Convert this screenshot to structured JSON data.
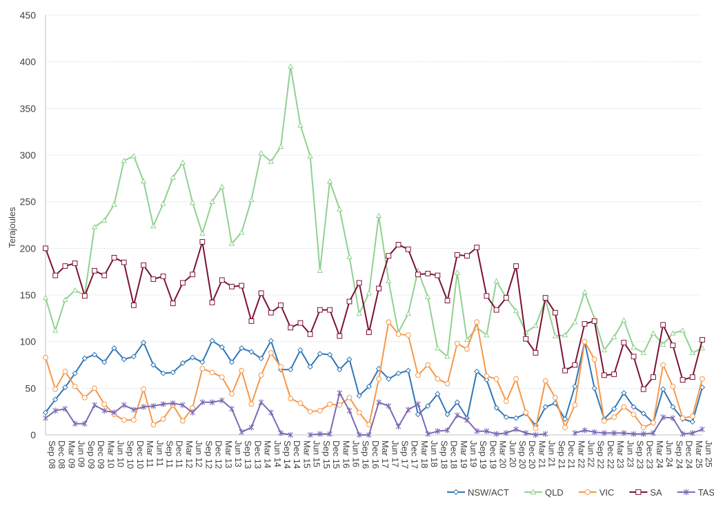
{
  "chart_data": {
    "type": "line",
    "ylabel": "Terajoules",
    "xlabel": "",
    "title": "",
    "ylim": [
      0,
      450
    ],
    "yticks": [
      0,
      50,
      100,
      150,
      200,
      250,
      300,
      350,
      400,
      450
    ],
    "grid": true,
    "legend_position": "bottom-right",
    "categories": [
      "Sep 08",
      "Dec 08",
      "Mar 09",
      "Jun 09",
      "Sep 09",
      "Dec 09",
      "Mar 10",
      "Jun 10",
      "Sep 10",
      "Dec 10",
      "Mar 11",
      "Jun 11",
      "Sep 11",
      "Dec 11",
      "Mar 12",
      "Jun 12",
      "Sep 12",
      "Dec 12",
      "Mar 13",
      "Jun 13",
      "Sep 13",
      "Dec 13",
      "Mar 14",
      "Jun 14",
      "Sep 14",
      "Dec 14",
      "Mar 15",
      "Jun 15",
      "Sep 15",
      "Dec 15",
      "Mar 16",
      "Jun 16",
      "Sep 16",
      "Dec 16",
      "Mar 17",
      "Jun 17",
      "Sep 17",
      "Dec 17",
      "Mar 18",
      "Jun 18",
      "Sep 18",
      "Dec 18",
      "Mar 19",
      "Jun 19",
      "Sep 19",
      "Dec 19",
      "Mar 20",
      "Jun 20",
      "Sep 20",
      "Dec 20",
      "Mar 21",
      "Jun 21",
      "Sep 21",
      "Dec 21",
      "Mar 22",
      "Jun 22",
      "Sep 22",
      "Dec 22",
      "Mar 23",
      "Jun 23",
      "Sep 23",
      "Dec 23",
      "Mar 24",
      "Jun 24",
      "Sep 24",
      "Dec 24",
      "Mar 25",
      "Jun 25"
    ],
    "x_labels_shown": [
      "Sep 08",
      "Dec 08",
      "Mar 09",
      "Jun 09",
      "Sep 09",
      "Dec 09",
      "Mar 10",
      "Jun 10",
      "Sep 10",
      "Dec 10",
      "Mar 11",
      "Jun 11",
      "Sep 11",
      "Dec 11",
      "Mar 12",
      "Jun 12",
      "Sep 12",
      "Dec 12",
      "Mar 13",
      "Jun 13",
      "Sep 13",
      "Dec 13",
      "Mar 14",
      "Jun 14",
      "Sep 14",
      "Dec 14",
      "Mar 15",
      "Jun 15",
      "Sep 15",
      "Dec 15",
      "Mar 16",
      "Jun 16",
      "Sep 16",
      "Dec 16",
      "Mar 17",
      "Jun 17",
      "Sep 17",
      "Dec 17",
      "Mar 18",
      "Jun 18",
      "Sep 18",
      "Dec 18",
      "Mar 19",
      "Jun 19",
      "Sep 19",
      "Dec 19",
      "Mar 20",
      "Jun 20",
      "Sep 20",
      "Dec 20",
      "Mar 21",
      "Jun 21",
      "Sep 21",
      "Dec 21",
      "Mar 22",
      "Jun 22",
      "Sep 22",
      "Dec 22",
      "Mar 23",
      "Jun 23",
      "Sep 23",
      "Dec 23",
      "Mar 24",
      "Jun 24",
      "Sep 24",
      "Dec 24",
      "Mar 25",
      "Jun 25"
    ],
    "series": [
      {
        "name": "NSW/ACT",
        "color": "#2e75b6",
        "marker": "diamond",
        "values": [
          24,
          38,
          51,
          66,
          82,
          86,
          78,
          93,
          81,
          84,
          99,
          75,
          66,
          67,
          77,
          83,
          78,
          101,
          94,
          78,
          93,
          89,
          82,
          101,
          70,
          70,
          91,
          73,
          87,
          86,
          70,
          81,
          42,
          52,
          71,
          60,
          66,
          69,
          22,
          31,
          44,
          22,
          35,
          18,
          68,
          59,
          29,
          19,
          18,
          23,
          10,
          30,
          34,
          17,
          52,
          100,
          50,
          17,
          28,
          45,
          30,
          23,
          13,
          49,
          30,
          17,
          14,
          51
        ]
      },
      {
        "name": "QLD",
        "color": "#8fd18f",
        "marker": "triangle",
        "values": [
          147,
          112,
          145,
          155,
          150,
          223,
          230,
          247,
          294,
          299,
          272,
          224,
          248,
          276,
          292,
          249,
          216,
          250,
          266,
          205,
          217,
          252,
          302,
          293,
          309,
          395,
          332,
          299,
          176,
          272,
          242,
          191,
          130,
          152,
          235,
          165,
          110,
          130,
          176,
          148,
          93,
          84,
          174,
          102,
          115,
          107,
          165,
          147,
          133,
          110,
          117,
          145,
          106,
          107,
          121,
          153,
          125,
          91,
          105,
          123,
          94,
          88,
          109,
          97,
          109,
          112,
          88,
          93
        ]
      },
      {
        "name": "VIC",
        "color": "#f79646",
        "marker": "circle",
        "values": [
          83,
          49,
          68,
          52,
          40,
          50,
          33,
          22,
          16,
          16,
          49,
          11,
          17,
          32,
          15,
          29,
          71,
          67,
          62,
          44,
          69,
          33,
          64,
          88,
          73,
          39,
          34,
          25,
          26,
          33,
          32,
          40,
          24,
          11,
          60,
          121,
          108,
          107,
          64,
          75,
          60,
          55,
          98,
          92,
          121,
          63,
          60,
          36,
          60,
          24,
          7,
          58,
          40,
          8,
          32,
          100,
          81,
          15,
          19,
          30,
          22,
          8,
          13,
          75,
          52,
          18,
          20,
          60
        ]
      },
      {
        "name": "SA",
        "color": "#7b1030",
        "marker": "square",
        "values": [
          200,
          171,
          181,
          184,
          149,
          176,
          171,
          190,
          185,
          139,
          182,
          167,
          170,
          141,
          163,
          172,
          207,
          142,
          166,
          159,
          160,
          122,
          152,
          131,
          139,
          115,
          120,
          108,
          134,
          134,
          106,
          143,
          163,
          110,
          157,
          192,
          204,
          199,
          172,
          173,
          171,
          144,
          193,
          192,
          201,
          149,
          134,
          147,
          181,
          103,
          88,
          147,
          131,
          69,
          75,
          119,
          122,
          64,
          65,
          99,
          84,
          49,
          62,
          118,
          96,
          59,
          62,
          102
        ]
      },
      {
        "name": "TAS",
        "color": "#7b68b5",
        "marker": "star",
        "values": [
          18,
          26,
          28,
          12,
          12,
          32,
          26,
          24,
          32,
          27,
          30,
          31,
          33,
          34,
          32,
          24,
          35,
          35,
          37,
          28,
          3,
          8,
          35,
          24,
          2,
          0,
          null,
          0,
          1,
          1,
          45,
          26,
          0,
          0,
          35,
          31,
          9,
          27,
          33,
          1,
          4,
          5,
          21,
          16,
          4,
          4,
          1,
          2,
          6,
          2,
          0,
          1,
          null,
          null,
          2,
          5,
          3,
          2,
          2,
          2,
          1,
          1,
          2,
          19,
          18,
          1,
          2,
          6
        ]
      }
    ]
  }
}
